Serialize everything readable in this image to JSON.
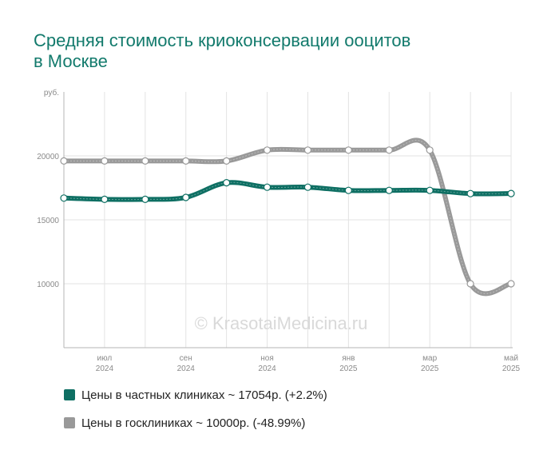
{
  "title_line1": "Средняя стоимость криоконсервации ооцитов",
  "title_line2": "в Москве",
  "watermark": "© KrasotaiMedicina.ru",
  "chart_data": {
    "type": "line",
    "title": "Средняя стоимость криоконсервации ооцитов в Москве",
    "ylabel": "руб.",
    "ylim": [
      5000,
      25000
    ],
    "yticks": [
      10000,
      15000,
      20000
    ],
    "x": [
      "2024-06",
      "2024-07",
      "2024-08",
      "2024-09",
      "2024-10",
      "2024-11",
      "2024-12",
      "2025-01",
      "2025-02",
      "2025-03",
      "2025-04",
      "2025-05"
    ],
    "xtick_labels": [
      {
        "index": 1,
        "month": "июл",
        "year": "2024"
      },
      {
        "index": 3,
        "month": "сен",
        "year": "2024"
      },
      {
        "index": 5,
        "month": "ноя",
        "year": "2024"
      },
      {
        "index": 7,
        "month": "янв",
        "year": "2025"
      },
      {
        "index": 9,
        "month": "мар",
        "year": "2025"
      },
      {
        "index": 11,
        "month": "май",
        "year": "2025"
      }
    ],
    "grid": true,
    "series": [
      {
        "label": "Цены в госклиниках ~ 10000р. (-48.99%)",
        "color": "#999999",
        "values": [
          19600,
          19600,
          19600,
          19600,
          19600,
          20450,
          20450,
          20450,
          20450,
          20450,
          10000,
          10000
        ]
      },
      {
        "label": "Цены в частных клиниках ~ 17054р. (+2.2%)",
        "color": "#0e6f63",
        "values": [
          16700,
          16600,
          16600,
          16750,
          17900,
          17550,
          17550,
          17300,
          17300,
          17300,
          17050,
          17054
        ]
      }
    ]
  },
  "legend": {
    "private_label": "Цены в частных клиниках ~ 17054р. (+2.2%)",
    "private_color": "#0e6f63",
    "public_label": "Цены в госклиниках ~ 10000р. (-48.99%)",
    "public_color": "#999999"
  }
}
